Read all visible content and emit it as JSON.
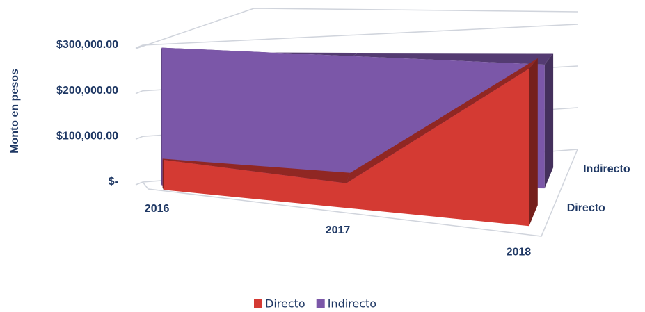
{
  "chart_data": {
    "type": "area3d",
    "y_label": "Monto en pesos",
    "categories": [
      "2016",
      "2017",
      "2018"
    ],
    "series": [
      {
        "name": "Directo",
        "color": "#d43a33",
        "values": [
          55000,
          45000,
          285000
        ]
      },
      {
        "name": "Indirecto",
        "color": "#7b57a8",
        "values": [
          275000,
          265000,
          255000
        ]
      }
    ],
    "ylim": [
      0,
      300000
    ],
    "yticks": [
      {
        "value": 0,
        "label": "$-"
      },
      {
        "value": 100000,
        "label": "$100,000.00"
      },
      {
        "value": 200000,
        "label": "$200,000.00"
      },
      {
        "value": 300000,
        "label": "$300,000.00"
      }
    ],
    "grid": true,
    "legend": "bottom"
  }
}
